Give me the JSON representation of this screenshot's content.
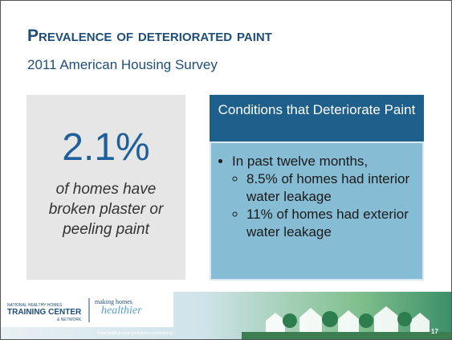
{
  "header": {
    "title": "Prevalence of deteriorated paint",
    "subtitle": "2011 American Housing Survey"
  },
  "stat_box": {
    "value": "2.1%",
    "caption": "of homes have broken plaster or peeling paint"
  },
  "conditions_box": {
    "heading": "Conditions that Deteriorate Paint",
    "bullet": "In past twelve months,",
    "sub_bullets": [
      "8.5% of homes had interior water leakage",
      "11% of homes had exterior water leakage"
    ]
  },
  "footer": {
    "logo_top": "NATIONAL HEALTHY HOMES",
    "logo_main": "TRAINING CENTER",
    "logo_bottom": "& NETWORK",
    "tagline_top": "making homes",
    "tagline_main": "healthier",
    "url": "www.healthyhousingsolutions.com/training",
    "page_number": "17"
  }
}
